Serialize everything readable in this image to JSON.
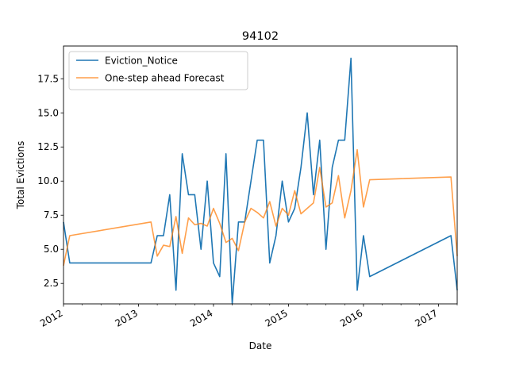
{
  "chart_data": {
    "type": "line",
    "title": "94102",
    "xlabel": "Date",
    "ylabel": "Total Evictions",
    "xlim": [
      "2012-01-01",
      "2017-04-01"
    ],
    "ylim": [
      1.0,
      19.9
    ],
    "x_ticks": [
      "2012",
      "2013",
      "2014",
      "2015",
      "2016",
      "2017"
    ],
    "y_ticks": [
      "2.5",
      "5.0",
      "7.5",
      "10.0",
      "12.5",
      "15.0",
      "17.5"
    ],
    "grid": false,
    "legend_position": "top-left",
    "colors": {
      "Eviction_Notice": "#1f77b4",
      "One-step ahead Forecast": "#ff7f0e"
    },
    "series": [
      {
        "name": "Eviction_Notice",
        "x": [
          "2012-01-01",
          "2012-02-01",
          "2013-03-01",
          "2013-04-01",
          "2013-05-01",
          "2013-06-01",
          "2013-07-01",
          "2013-08-01",
          "2013-09-01",
          "2013-10-01",
          "2013-11-01",
          "2013-12-01",
          "2014-01-01",
          "2014-02-01",
          "2014-03-01",
          "2014-04-01",
          "2014-05-01",
          "2014-06-01",
          "2014-07-01",
          "2014-08-01",
          "2014-09-01",
          "2014-10-01",
          "2014-11-01",
          "2014-12-01",
          "2015-01-01",
          "2015-02-01",
          "2015-03-01",
          "2015-04-01",
          "2015-05-01",
          "2015-06-01",
          "2015-07-01",
          "2015-08-01",
          "2015-09-01",
          "2015-10-01",
          "2015-11-01",
          "2015-12-01",
          "2016-01-01",
          "2016-02-01",
          "2017-03-01",
          "2017-04-01"
        ],
        "values": [
          7,
          4,
          4,
          6,
          6,
          9,
          2,
          12,
          9,
          9,
          5,
          10,
          4,
          3,
          12,
          1,
          7,
          7,
          10,
          13,
          13,
          4,
          6,
          10,
          7,
          8,
          11,
          15,
          9,
          13,
          5,
          11,
          13,
          13,
          19,
          2,
          6,
          3,
          6,
          2
        ]
      },
      {
        "name": "One-step ahead Forecast",
        "x": [
          "2012-01-01",
          "2012-02-01",
          "2013-03-01",
          "2013-04-01",
          "2013-05-01",
          "2013-06-01",
          "2013-07-01",
          "2013-08-01",
          "2013-09-01",
          "2013-10-01",
          "2013-11-01",
          "2013-12-01",
          "2014-01-01",
          "2014-02-01",
          "2014-03-01",
          "2014-04-01",
          "2014-05-01",
          "2014-06-01",
          "2014-07-01",
          "2014-08-01",
          "2014-09-01",
          "2014-10-01",
          "2014-11-01",
          "2014-12-01",
          "2015-01-01",
          "2015-02-01",
          "2015-03-01",
          "2015-04-01",
          "2015-05-01",
          "2015-06-01",
          "2015-07-01",
          "2015-08-01",
          "2015-09-01",
          "2015-10-01",
          "2015-11-01",
          "2015-12-01",
          "2016-01-01",
          "2016-02-01",
          "2017-03-01",
          "2017-04-01"
        ],
        "values": [
          3.8,
          6.0,
          7.0,
          4.5,
          5.3,
          5.2,
          7.4,
          4.7,
          7.3,
          6.8,
          6.9,
          6.7,
          8.0,
          6.9,
          5.5,
          5.8,
          4.9,
          7.0,
          8.0,
          7.7,
          7.3,
          8.5,
          6.7,
          8.0,
          7.5,
          9.3,
          7.6,
          8.0,
          8.4,
          11.0,
          8.1,
          8.4,
          10.4,
          7.3,
          9.3,
          12.3,
          8.1,
          10.1,
          10.3,
          4.5
        ]
      }
    ]
  }
}
